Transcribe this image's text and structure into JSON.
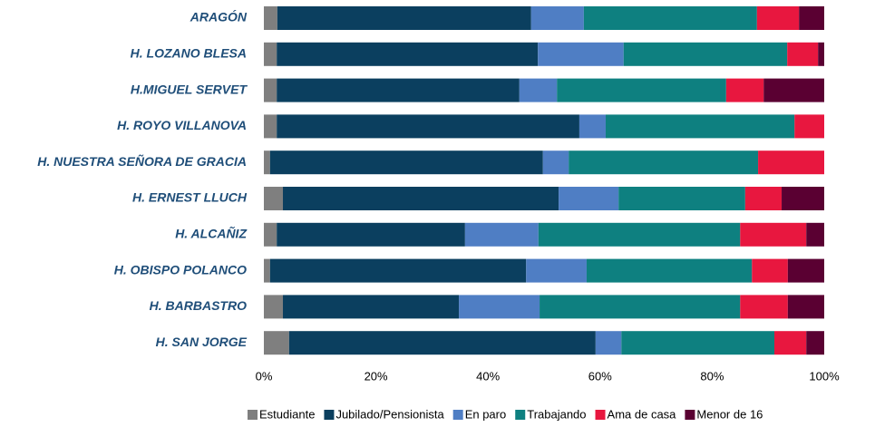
{
  "chart_data": {
    "type": "stacked-bar-horizontal",
    "categories": [
      "ARAGÓN",
      "H. LOZANO BLESA",
      "H.MIGUEL SERVET",
      "H. ROYO VILLANOVA",
      "H. NUESTRA SEÑORA DE GRACIA",
      "H. ERNEST LLUCH",
      "H. ALCAÑIZ",
      "H. OBISPO POLANCO",
      "H. BARBASTRO",
      "H. SAN JORGE"
    ],
    "series": [
      {
        "name": "Estudiante",
        "color": "#7f7f7f",
        "values": [
          2.4,
          2.3,
          2.3,
          2.3,
          1.1,
          3.4,
          2.3,
          1.1,
          3.4,
          4.5
        ]
      },
      {
        "name": "Jubilado/Pensionista",
        "color": "#0b3f5f",
        "values": [
          45.3,
          46.6,
          43.3,
          54.0,
          48.7,
          49.2,
          33.6,
          45.7,
          31.4,
          54.7
        ]
      },
      {
        "name": "En paro",
        "color": "#4f7ec4",
        "values": [
          9.4,
          15.3,
          6.7,
          4.7,
          4.6,
          10.7,
          13.1,
          10.8,
          14.4,
          4.6
        ]
      },
      {
        "name": "Trabajando",
        "color": "#0e8080",
        "values": [
          30.9,
          29.2,
          30.2,
          33.7,
          33.8,
          22.6,
          36.0,
          29.5,
          35.8,
          27.3
        ]
      },
      {
        "name": "Ama de casa",
        "color": "#e8173f",
        "values": [
          7.5,
          5.5,
          6.7,
          5.3,
          11.8,
          6.5,
          11.8,
          6.4,
          8.5,
          5.7
        ]
      },
      {
        "name": "Menor de 16",
        "color": "#5a0032",
        "values": [
          4.5,
          1.1,
          10.8,
          0,
          0,
          7.6,
          3.2,
          6.5,
          6.5,
          3.2
        ]
      }
    ],
    "xlim": [
      0,
      100
    ],
    "xticks": [
      {
        "value": 0,
        "label": "0%"
      },
      {
        "value": 20,
        "label": "20%"
      },
      {
        "value": 40,
        "label": "40%"
      },
      {
        "value": 60,
        "label": "60%"
      },
      {
        "value": 80,
        "label": "80%"
      },
      {
        "value": 100,
        "label": "100%"
      }
    ],
    "legend": "bottom"
  }
}
